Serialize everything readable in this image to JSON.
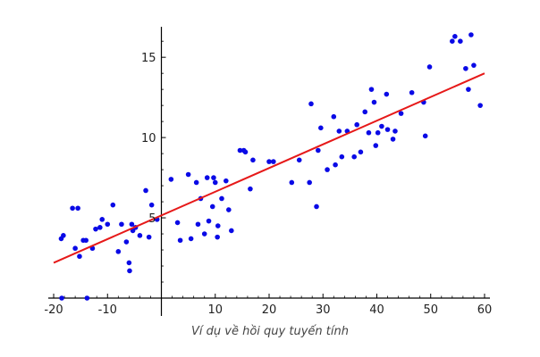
{
  "caption": "Ví dụ về hồi quy tuyến tính",
  "chart_data": {
    "type": "scatter",
    "title": "",
    "xlabel": "",
    "ylabel": "",
    "xlim": [
      -21,
      61
    ],
    "ylim": [
      0,
      16.9
    ],
    "x_ticks": [
      -20,
      -10,
      0,
      10,
      20,
      30,
      40,
      50,
      60
    ],
    "x_tick_labels": [
      "-20",
      "-10",
      "",
      "10",
      "20",
      "30",
      "40",
      "50",
      "60"
    ],
    "y_ticks": [
      5,
      10,
      15
    ],
    "y_tick_labels": [
      "5",
      "10",
      "15"
    ],
    "grid": false,
    "legend": "none",
    "axes_cross_at": [
      0,
      0
    ],
    "colors": {
      "points": "#0a0ae6",
      "fit_line": "#e61919",
      "axes": "#000000"
    },
    "series": [
      {
        "kind": "points",
        "x": [
          -18.6,
          -18.2,
          -16.5,
          -16.0,
          -15.5,
          -15.2,
          -14.5,
          -13.8,
          -12.8,
          -12.2,
          -11.4,
          -11.0,
          -10.0,
          -9.0,
          -8.0,
          -7.4,
          -6.5,
          -5.9,
          -5.5,
          -5.3,
          -4.8,
          -2.9,
          -2.3,
          -1.8,
          -0.8,
          1.8,
          3.5,
          5.0,
          6.5,
          6.8,
          7.3,
          8.0,
          8.5,
          8.8,
          9.5,
          10.0,
          10.4,
          11.2,
          12.0,
          12.5,
          13.0,
          14.6,
          15.3,
          15.6,
          16.5,
          17.0,
          20.0,
          20.8,
          24.2,
          25.6,
          27.5,
          27.8,
          28.8,
          29.1,
          29.6,
          30.8,
          32.0,
          32.3,
          33.0,
          33.5,
          34.5,
          35.8,
          36.3,
          37.0,
          37.8,
          38.5,
          39.0,
          39.5,
          39.8,
          40.2,
          40.9,
          41.8,
          42.0,
          43.0,
          43.4,
          44.5,
          46.5,
          48.7,
          49.0,
          49.8,
          54.0,
          54.5,
          55.5,
          56.5,
          57.0,
          57.5,
          58.0,
          59.2,
          -14.0,
          -6.0,
          -18.5,
          -4.0,
          3.0,
          5.5,
          9.7,
          10.5
        ],
        "y": [
          3.7,
          3.9,
          5.6,
          3.1,
          5.6,
          2.6,
          3.6,
          0.0,
          3.1,
          4.3,
          4.4,
          4.9,
          4.6,
          5.8,
          2.9,
          4.6,
          3.5,
          1.7,
          4.6,
          4.2,
          4.4,
          6.7,
          3.8,
          5.8,
          4.9,
          7.4,
          3.6,
          7.7,
          7.2,
          4.6,
          6.2,
          4.0,
          7.5,
          4.8,
          5.7,
          7.2,
          3.8,
          6.2,
          7.3,
          5.5,
          4.2,
          9.2,
          9.2,
          9.1,
          6.8,
          8.6,
          8.5,
          8.5,
          7.2,
          8.6,
          7.2,
          12.1,
          5.7,
          9.2,
          10.6,
          8.0,
          11.3,
          8.3,
          10.4,
          8.8,
          10.4,
          8.8,
          10.8,
          9.1,
          11.6,
          10.3,
          13.0,
          12.2,
          9.5,
          10.3,
          10.7,
          12.7,
          10.5,
          9.9,
          10.4,
          11.5,
          12.8,
          12.2,
          10.1,
          14.4,
          16.0,
          16.3,
          16.0,
          14.3,
          13.0,
          16.4,
          14.5,
          12.0,
          3.6,
          2.2,
          0.0,
          3.9,
          4.7,
          3.7,
          7.5,
          4.5
        ]
      },
      {
        "kind": "line",
        "x": [
          -20,
          60
        ],
        "y": [
          2.2,
          14.0
        ]
      }
    ]
  }
}
